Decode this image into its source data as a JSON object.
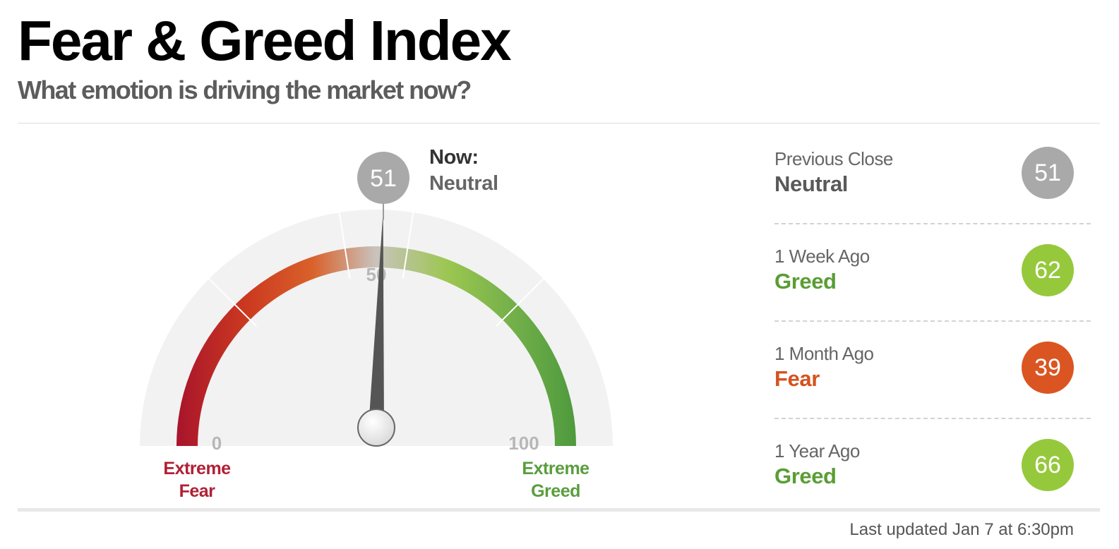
{
  "header": {
    "title": "Fear & Greed Index",
    "subtitle": "What emotion is driving the market now?"
  },
  "gauge": {
    "value": 51,
    "scale_min": 0,
    "scale_max": 100,
    "now_label": "Now:",
    "now_rating": "Neutral",
    "tick_labels": {
      "min": "0",
      "mid": "50",
      "max": "100"
    },
    "end_labels": {
      "fear_line1": "Extreme",
      "fear_line2": "Fear",
      "greed_line1": "Extreme",
      "greed_line2": "Greed"
    },
    "colors": {
      "extreme_fear": "#a8142b",
      "fear": "#e05a1c",
      "neutral": "#c7c7c7",
      "greed": "#9ac546",
      "extreme_greed": "#4e9a3e",
      "score_bubble": "#a9a9a9"
    }
  },
  "history": [
    {
      "label": "Previous Close",
      "rating": "Neutral",
      "score": "51",
      "color": "#a9a9a9",
      "text_color": "#595959"
    },
    {
      "label": "1 Week Ago",
      "rating": "Greed",
      "score": "62",
      "color": "#96c83c",
      "text_color": "#5a9d34"
    },
    {
      "label": "1 Month Ago",
      "rating": "Fear",
      "score": "39",
      "color": "#da5522",
      "text_color": "#d4531e"
    },
    {
      "label": "1 Year Ago",
      "rating": "Greed",
      "score": "66",
      "color": "#96c83c",
      "text_color": "#5a9d34"
    }
  ],
  "footer": {
    "last_updated": "Last updated Jan 7 at 6:30pm"
  }
}
